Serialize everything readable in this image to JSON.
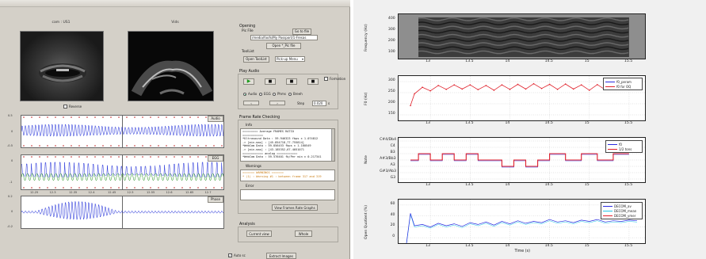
{
  "left_app": {
    "video_captions": [
      "cam : US1",
      "Vids"
    ],
    "reverse_label": "Reverse",
    "waveform_panels": [
      {
        "button": "Audio",
        "yticks": [
          "0.5",
          "0",
          "-0.5"
        ]
      },
      {
        "button": "EGG",
        "yticks": [
          "0",
          "-1"
        ]
      },
      {
        "button": "Phase",
        "yticks": [
          "0.2",
          "0",
          "-0.2"
        ]
      }
    ],
    "time_ticks": [
      "12.25",
      "12.3",
      "12.35",
      "12.4",
      "12.45",
      "12.5",
      "12.55",
      "12.6",
      "12.65",
      "12.7"
    ],
    "opening": {
      "title": "Opening",
      "pic_file_label": "Pic File",
      "go_to_file_button": "Go to file",
      "path_value": "/media/foofs/My Passport/1-Fresas",
      "open_button": "Open *_Pic file",
      "tool_list_label": "ToolList",
      "open_tool_button": "Open ToolList",
      "popup_value": "Pick-up Menu"
    },
    "play_audio": {
      "title": "Play Audio",
      "formation_label": "Formation",
      "transport_icons": [
        "play-icon",
        "stop-icon",
        "stop-icon",
        "stop-icon"
      ],
      "radio_options": [
        "Audio",
        "EGG",
        "Phms",
        "Breeh"
      ],
      "step_label": "Step",
      "step_value": "0.020",
      "step_unit": "s"
    },
    "frame_rate": {
      "title": "Frame Rate Checking",
      "info_label": "Info",
      "info_lines": [
        "========= Average FRAMES RATIO",
        "============",
        "*Ultrasound Data : 59.946323 fbps ± 1.074812",
        "   -> [min-max] : [45.854718,77.755814]",
        "*WebCam Data : 59.856453 fbps ± 1.160549",
        "   -> [min-max] : [43.185352,67.4051071",
        "============ analog ============",
        "*WebCam Data : 59.576401 fb/Per min ± 0.217341"
      ],
      "warnings_label": "Warnings",
      "warning_lines": [
        "=======  WARNINGS  =======",
        " * (1) : Warning #1 : between frame 317 and 319"
      ],
      "error_label": "Error",
      "view_button": "View Frames Rate Graphs"
    },
    "analysis": {
      "title": "Analysis",
      "current_view_button": "Current view",
      "whole_button": "Whole"
    },
    "footer": {
      "checkbox_label": "Auto sc",
      "extract_button": "Extract Images"
    }
  },
  "right_figure": {
    "x_ticks": [
      "13",
      "13.5",
      "14",
      "14.5",
      "15",
      "15.5"
    ],
    "xlabel": "Time (s)",
    "colors": {
      "red": "#e0202a",
      "blue": "#2a2ae0",
      "cyan": "#22c8e8",
      "green": "#1a8a1a"
    },
    "chart_data": [
      {
        "type": "heatmap",
        "ylabel": "Frequency (Hz)",
        "y_ticks": [
          "400",
          "300",
          "200",
          "100"
        ],
        "x_range": [
          12.6,
          15.7
        ]
      },
      {
        "type": "line",
        "ylabel": "F0 (Hz)",
        "y_ticks": [
          "300",
          "250",
          "200",
          "150"
        ],
        "ylim": [
          150,
          300
        ],
        "x_range": [
          12.6,
          15.7
        ],
        "series": [
          {
            "name": "f0_peram",
            "color": "#2a2ae0"
          },
          {
            "name": "f0 for OQ",
            "color": "#e0202a"
          }
        ],
        "x": [
          12.75,
          12.8,
          12.9,
          13.0,
          13.1,
          13.2,
          13.3,
          13.4,
          13.5,
          13.6,
          13.7,
          13.8,
          13.9,
          14.0,
          14.1,
          14.2,
          14.3,
          14.4,
          14.5,
          14.6,
          14.7,
          14.8,
          14.9,
          15.0,
          15.1,
          15.2,
          15.3,
          15.4,
          15.5,
          15.6
        ],
        "y": [
          200,
          240,
          262,
          250,
          268,
          255,
          270,
          256,
          270,
          254,
          268,
          252,
          270,
          255,
          272,
          256,
          274,
          258,
          272,
          255,
          273,
          256,
          270,
          252,
          271,
          254,
          270,
          255,
          268,
          258
        ]
      },
      {
        "type": "line",
        "ylabel": "Note",
        "y_ticks": [
          "C#4/Db4",
          "C4",
          "B3",
          "A#3/Bb3",
          "A3",
          "G#3/Ab3",
          "G3"
        ],
        "x_range": [
          12.6,
          15.7
        ],
        "series": [
          {
            "name": "f0",
            "color": "#2a2ae0"
          },
          {
            "name": "1/2 tons",
            "color": "#e0202a"
          }
        ],
        "step_levels": [
          "C4",
          "C#4/Db4",
          "C4",
          "C#4/Db4",
          "C4",
          "C#4/Db4",
          "C4",
          "B3",
          "C4",
          "B3",
          "C4",
          "C#4/Db4",
          "C4",
          "C#4/Db4",
          "C4",
          "C#4/Db4",
          "C4"
        ],
        "x": [
          12.75,
          12.85,
          13.0,
          13.15,
          13.3,
          13.45,
          13.6,
          13.75,
          13.9,
          14.05,
          14.2,
          14.35,
          14.5,
          14.7,
          14.9,
          15.1,
          15.3
        ],
        "y": [
          3,
          2,
          3,
          2,
          3,
          2,
          3,
          3,
          4,
          3,
          4,
          3,
          2,
          3,
          2,
          3,
          2
        ]
      },
      {
        "type": "line",
        "ylabel": "Open Quotient (%)",
        "y_ticks": [
          "60",
          "40",
          "20",
          "0"
        ],
        "ylim": [
          0,
          70
        ],
        "x_range": [
          12.6,
          15.7
        ],
        "series": [
          {
            "name": "DECOM_av",
            "color": "#2a2ae0"
          },
          {
            "name": "DECOM_mean",
            "color": "#22c8e8"
          },
          {
            "name": "DECOM_ymer",
            "color": "#e0202a"
          }
        ],
        "x": [
          12.7,
          12.75,
          12.8,
          12.9,
          13.0,
          13.1,
          13.2,
          13.3,
          13.4,
          13.5,
          13.6,
          13.7,
          13.8,
          13.9,
          14.0,
          14.1,
          14.2,
          14.3,
          14.4,
          14.5,
          14.6,
          14.7,
          14.8,
          14.9,
          15.0,
          15.1,
          15.2,
          15.3,
          15.4,
          15.5,
          15.6
        ],
        "y": [
          0,
          48,
          28,
          30,
          26,
          32,
          28,
          31,
          27,
          33,
          30,
          34,
          29,
          35,
          31,
          36,
          32,
          35,
          33,
          38,
          34,
          36,
          33,
          37,
          35,
          38,
          34,
          36,
          35,
          37,
          36
        ]
      }
    ]
  }
}
